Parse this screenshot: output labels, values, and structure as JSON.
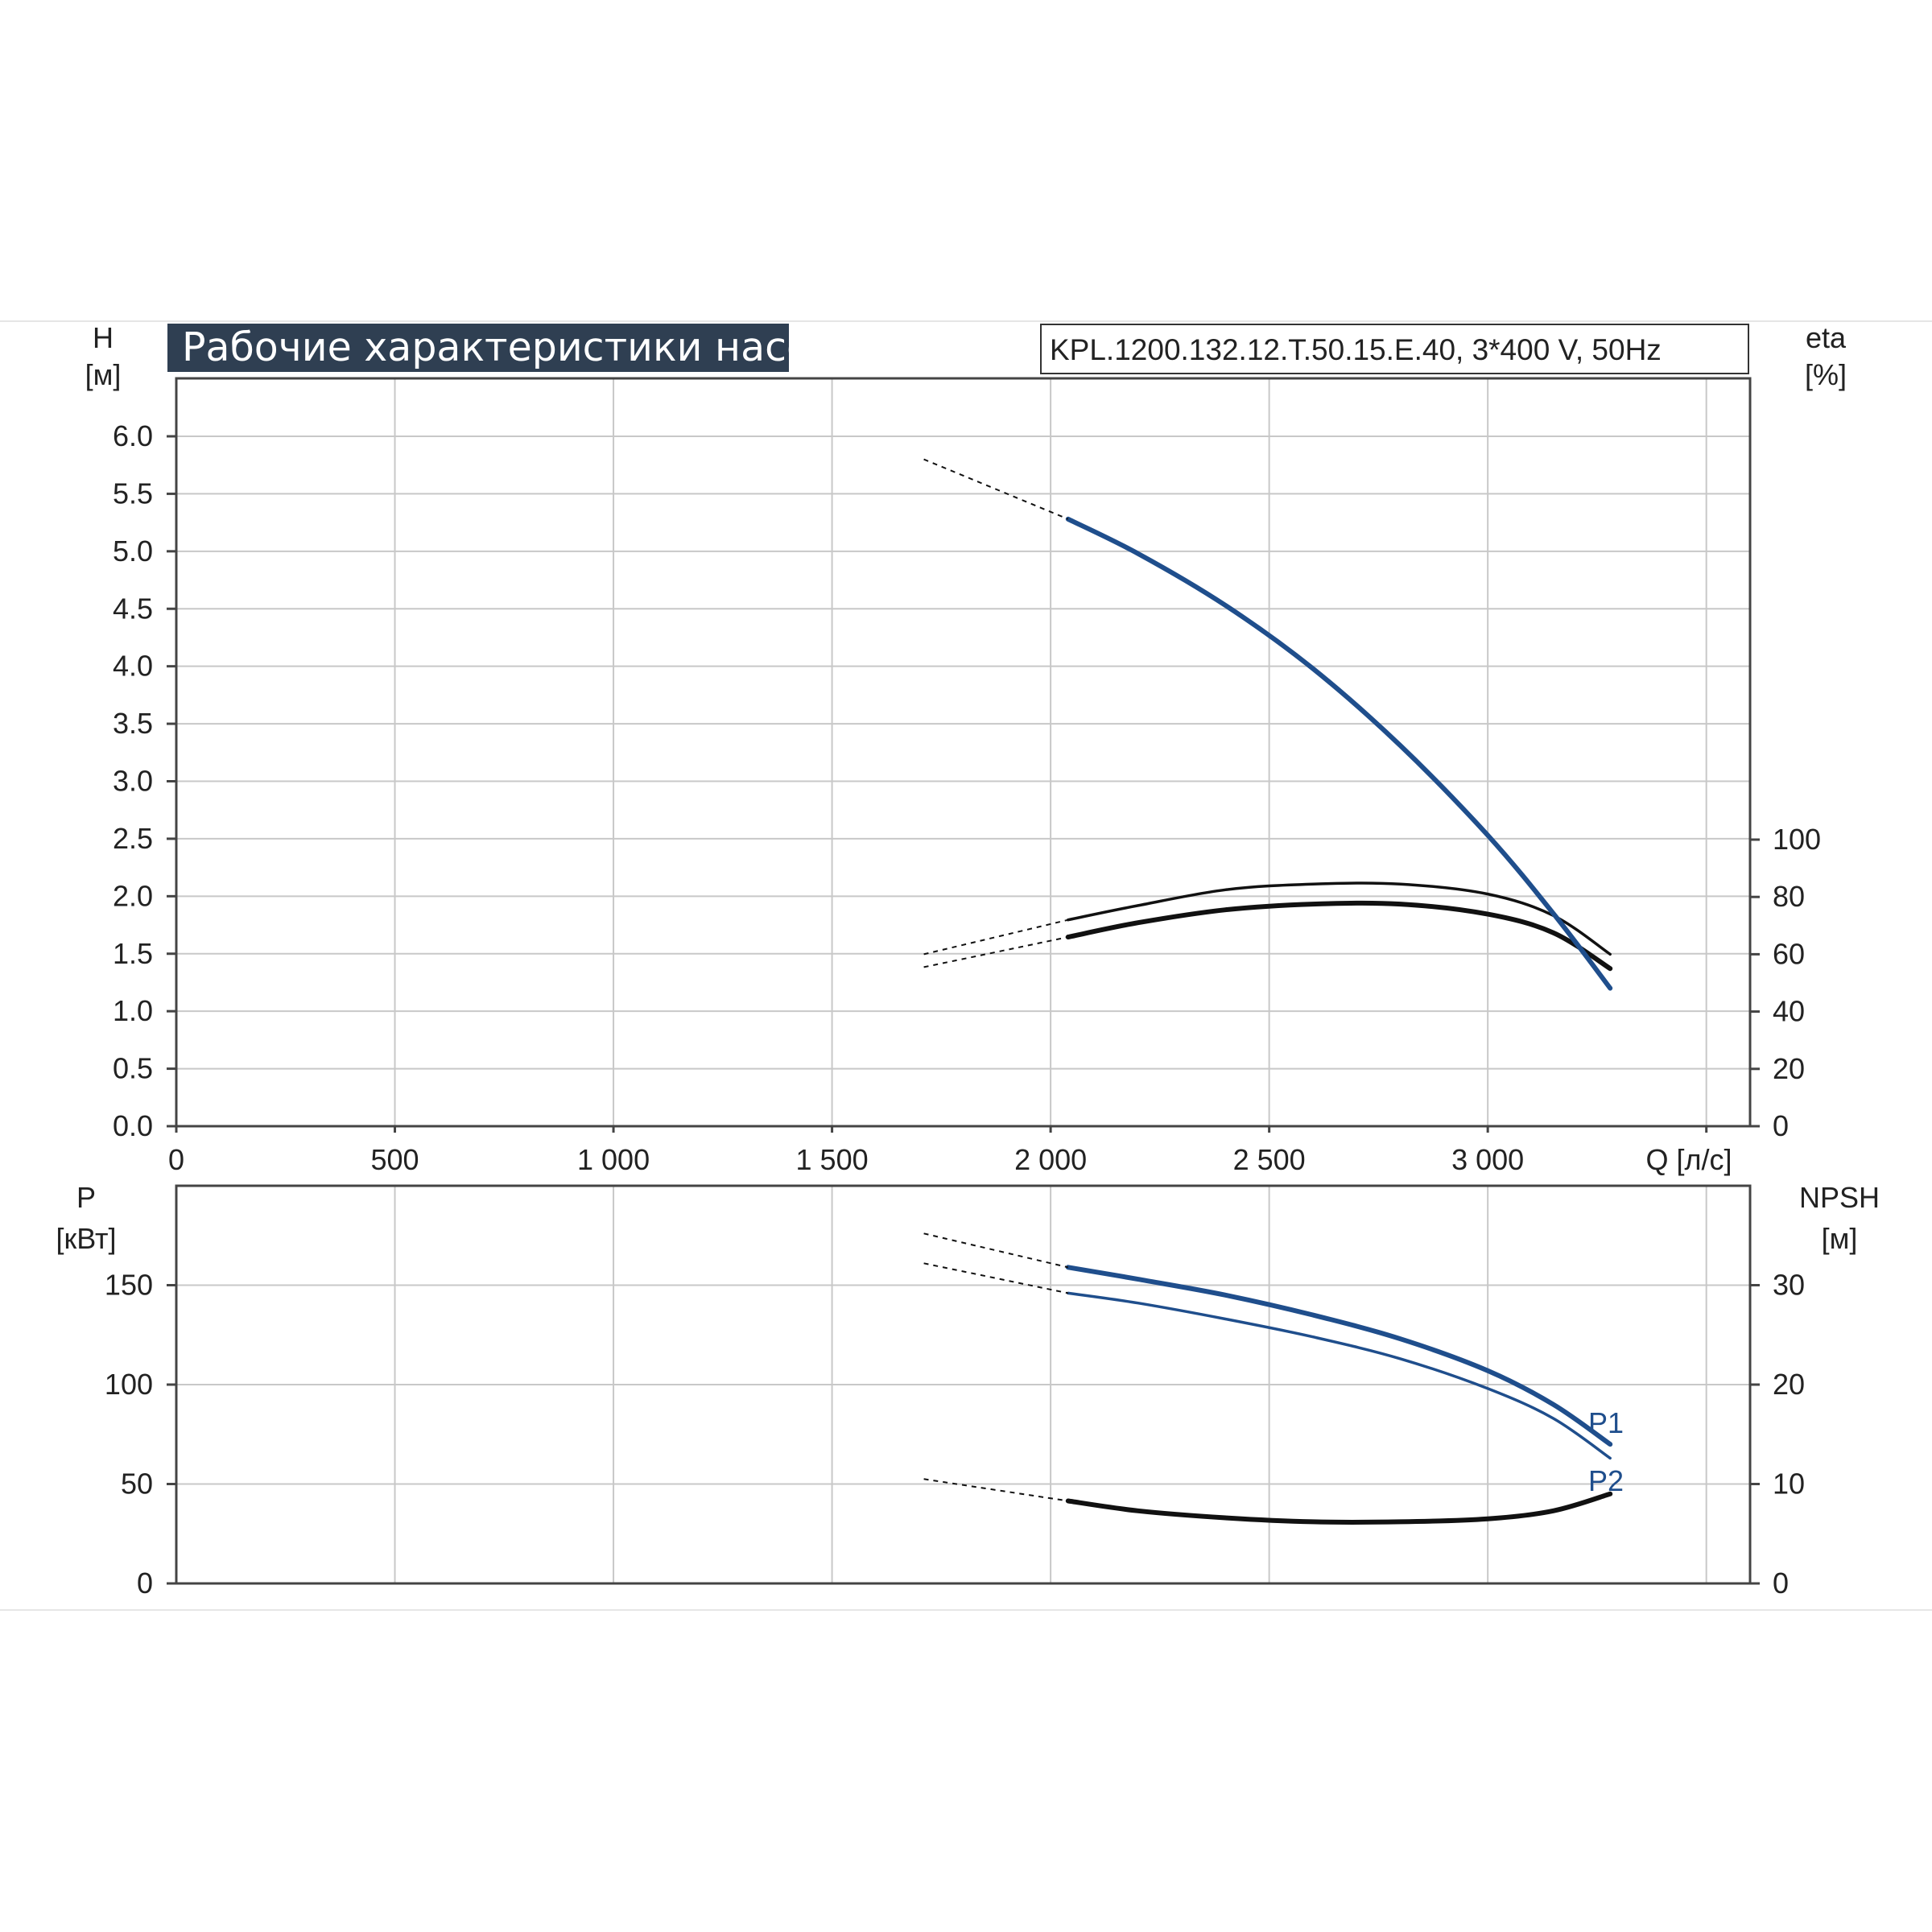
{
  "colors": {
    "head_curve": "#1f4e8c",
    "power_curves": "#1f4e8c",
    "efficiency_curves": "#111111",
    "npsh_curve": "#111111",
    "grid": "#c8c8c8",
    "title_bg": "#2f3f52"
  },
  "chart_data": [
    {
      "type": "line",
      "title": "Рабочие характеристики насоса",
      "subtitle": "KPL.1200.132.12.T.50.15.E.40, 3*400 V, 50Hz",
      "xlabel": "Q [л/с]",
      "x_ticks": [
        "0",
        "500",
        "1 000",
        "1 500",
        "2 000",
        "2 500",
        "3 000"
      ],
      "xlim": [
        0,
        3600
      ],
      "ylabel": [
        "H",
        "[м]"
      ],
      "ylim": [
        0,
        6.0
      ],
      "y_ticks": [
        "0.0",
        "0.5",
        "1.0",
        "1.5",
        "2.0",
        "2.5",
        "3.0",
        "3.5",
        "4.0",
        "4.5",
        "5.0",
        "5.5",
        "6.0"
      ],
      "y2label": [
        "eta",
        "[%]"
      ],
      "y2lim": [
        0,
        100
      ],
      "y2_ticks": [
        "0",
        "20",
        "40",
        "60",
        "80",
        "100"
      ],
      "grid": true,
      "series": [
        {
          "axis": "left",
          "style": "thick",
          "x": [
            2040,
            2200,
            2400,
            2600,
            2800,
            3000,
            3150,
            3280
          ],
          "y": [
            5.28,
            4.98,
            4.53,
            3.98,
            3.31,
            2.53,
            1.85,
            1.2
          ],
          "extrapolated": {
            "x": [
              1710,
              2040
            ],
            "y": [
              5.8,
              5.28
            ]
          }
        },
        {
          "axis": "right",
          "style": "thin",
          "x": [
            2040,
            2200,
            2400,
            2600,
            2800,
            3000,
            3150,
            3280
          ],
          "y": [
            72,
            77,
            82.5,
            84.5,
            84.5,
            81,
            73.5,
            60
          ],
          "extrapolated": {
            "x": [
              1710,
              2040
            ],
            "y": [
              60,
              72
            ]
          }
        },
        {
          "axis": "right",
          "style": "thick",
          "x": [
            2040,
            2200,
            2400,
            2600,
            2800,
            3000,
            3150,
            3280
          ],
          "y": [
            66,
            71,
            75.5,
            77.5,
            77.5,
            74,
            67.5,
            55
          ],
          "extrapolated": {
            "x": [
              1710,
              2040
            ],
            "y": [
              55.5,
              66
            ]
          }
        }
      ]
    },
    {
      "type": "line",
      "xlabel": "",
      "xlim": [
        0,
        3600
      ],
      "ylabel": [
        "P",
        "[кВт]"
      ],
      "ylim": [
        0,
        200
      ],
      "y_ticks": [
        "0",
        "50",
        "100",
        "150"
      ],
      "y2label": [
        "NPSH",
        "[м]"
      ],
      "y2lim": [
        0,
        40
      ],
      "y2_ticks": [
        "0",
        "10",
        "20",
        "30"
      ],
      "grid": true,
      "series": [
        {
          "name": "P1",
          "axis": "left",
          "style": "thick",
          "x": [
            2040,
            2200,
            2400,
            2600,
            2800,
            3000,
            3150,
            3280
          ],
          "y": [
            159,
            153,
            145,
            135,
            123,
            107,
            90,
            70
          ],
          "extrapolated": {
            "x": [
              1710,
              2040
            ],
            "y": [
              176,
              159
            ]
          }
        },
        {
          "name": "P2",
          "axis": "left",
          "style": "thin",
          "x": [
            2040,
            2200,
            2400,
            2600,
            2800,
            3000,
            3150,
            3280
          ],
          "y": [
            146,
            141,
            133,
            124,
            113,
            98,
            83,
            63
          ],
          "extrapolated": {
            "x": [
              1710,
              2040
            ],
            "y": [
              161,
              146
            ]
          }
        },
        {
          "axis": "right",
          "style": "thick",
          "x": [
            2040,
            2200,
            2400,
            2600,
            2800,
            3000,
            3150,
            3280
          ],
          "y": [
            8.3,
            7.3,
            6.6,
            6.2,
            6.2,
            6.5,
            7.3,
            9.0
          ],
          "extrapolated": {
            "x": [
              1710,
              2040
            ],
            "y": [
              10.5,
              8.3
            ]
          }
        }
      ]
    }
  ]
}
